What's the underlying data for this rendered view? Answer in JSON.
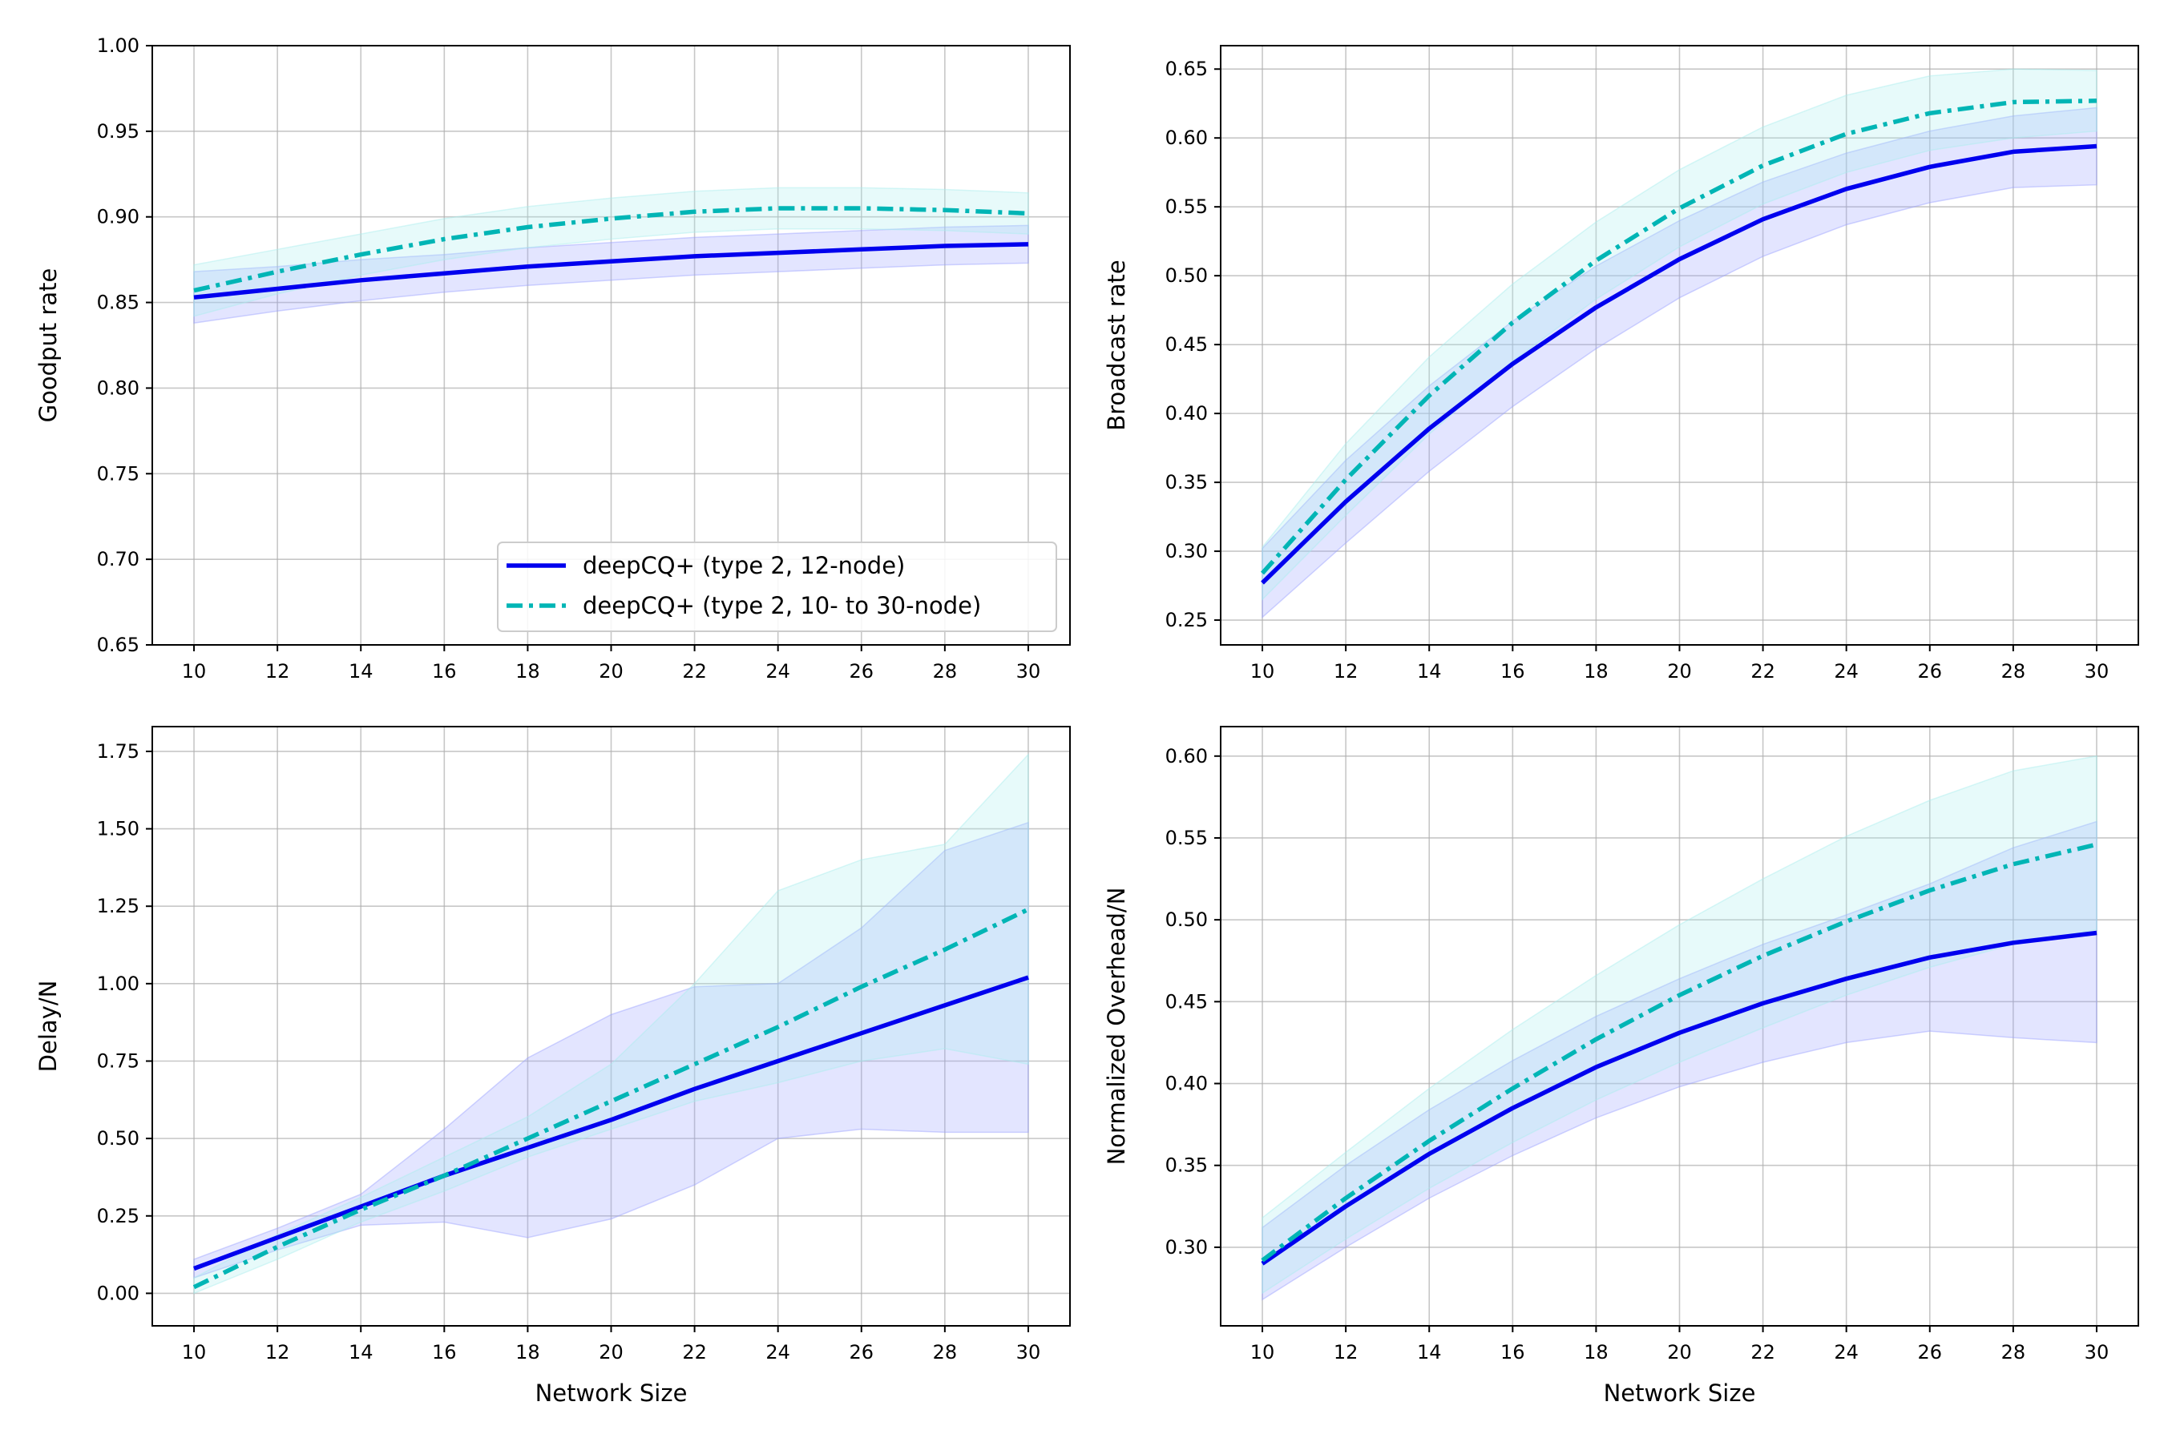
{
  "chart_data": [
    {
      "type": "line",
      "id": "goodput",
      "xlabel": "",
      "ylabel": "Goodput rate",
      "xlim": [
        9,
        31
      ],
      "ylim": [
        0.65,
        1.0
      ],
      "xticks": [
        10,
        12,
        14,
        16,
        18,
        20,
        22,
        24,
        26,
        28,
        30
      ],
      "yticks": [
        0.65,
        0.7,
        0.75,
        0.8,
        0.85,
        0.9,
        0.95,
        1.0
      ],
      "ytick_labels": [
        "0.65",
        "0.70",
        "0.75",
        "0.80",
        "0.85",
        "0.90",
        "0.95",
        "1.00"
      ],
      "grid": true,
      "legend": "lower-right",
      "x": [
        10,
        12,
        14,
        16,
        18,
        20,
        22,
        24,
        26,
        28,
        30
      ],
      "series": [
        {
          "name": "deepCQ+ (type 2, 12-node)",
          "style": "solid",
          "color": "#0000ee",
          "values": [
            0.853,
            0.858,
            0.863,
            0.867,
            0.871,
            0.874,
            0.877,
            0.879,
            0.881,
            0.883,
            0.884
          ],
          "lower": [
            0.838,
            0.845,
            0.851,
            0.856,
            0.86,
            0.863,
            0.866,
            0.868,
            0.87,
            0.872,
            0.873
          ],
          "upper": [
            0.868,
            0.871,
            0.875,
            0.878,
            0.882,
            0.885,
            0.888,
            0.89,
            0.892,
            0.894,
            0.895
          ]
        },
        {
          "name": "deepCQ+ (type 2, 10- to 30-node)",
          "style": "dashdot",
          "color": "#00b5b5",
          "values": [
            0.857,
            0.868,
            0.878,
            0.887,
            0.894,
            0.899,
            0.903,
            0.905,
            0.905,
            0.904,
            0.902
          ],
          "lower": [
            0.842,
            0.855,
            0.866,
            0.875,
            0.882,
            0.887,
            0.891,
            0.893,
            0.893,
            0.892,
            0.89
          ],
          "upper": [
            0.872,
            0.881,
            0.89,
            0.899,
            0.906,
            0.911,
            0.915,
            0.917,
            0.917,
            0.916,
            0.914
          ]
        }
      ]
    },
    {
      "type": "line",
      "id": "broadcast",
      "xlabel": "",
      "ylabel": "Broadcast rate",
      "xlim": [
        9,
        31
      ],
      "ylim": [
        0.232,
        0.667
      ],
      "xticks": [
        10,
        12,
        14,
        16,
        18,
        20,
        22,
        24,
        26,
        28,
        30
      ],
      "yticks": [
        0.25,
        0.3,
        0.35,
        0.4,
        0.45,
        0.5,
        0.55,
        0.6,
        0.65
      ],
      "ytick_labels": [
        "0.25",
        "0.30",
        "0.35",
        "0.40",
        "0.45",
        "0.50",
        "0.55",
        "0.60",
        "0.65"
      ],
      "grid": true,
      "x": [
        10,
        12,
        14,
        16,
        18,
        20,
        22,
        24,
        26,
        28,
        30
      ],
      "series": [
        {
          "name": "deepCQ+ (type 2, 12-node)",
          "style": "solid",
          "color": "#0000ee",
          "values": [
            0.277,
            0.336,
            0.389,
            0.436,
            0.477,
            0.512,
            0.541,
            0.563,
            0.579,
            0.59,
            0.594
          ],
          "lower": [
            0.252,
            0.306,
            0.358,
            0.405,
            0.447,
            0.484,
            0.514,
            0.537,
            0.553,
            0.564,
            0.566
          ],
          "upper": [
            0.302,
            0.366,
            0.42,
            0.467,
            0.507,
            0.54,
            0.568,
            0.589,
            0.605,
            0.616,
            0.622
          ]
        },
        {
          "name": "deepCQ+ (type 2, 10- to 30-node)",
          "style": "dashdot",
          "color": "#00b5b5",
          "values": [
            0.284,
            0.352,
            0.413,
            0.466,
            0.511,
            0.549,
            0.58,
            0.603,
            0.618,
            0.626,
            0.627
          ],
          "lower": [
            0.265,
            0.326,
            0.385,
            0.438,
            0.483,
            0.521,
            0.552,
            0.575,
            0.591,
            0.6,
            0.605
          ],
          "upper": [
            0.303,
            0.378,
            0.441,
            0.494,
            0.539,
            0.577,
            0.608,
            0.631,
            0.645,
            0.65,
            0.649
          ]
        }
      ]
    },
    {
      "type": "line",
      "id": "delay",
      "xlabel": "Network Size",
      "ylabel": "Delay/N",
      "xlim": [
        9,
        31
      ],
      "ylim": [
        -0.105,
        1.83
      ],
      "xticks": [
        10,
        12,
        14,
        16,
        18,
        20,
        22,
        24,
        26,
        28,
        30
      ],
      "yticks": [
        0.0,
        0.25,
        0.5,
        0.75,
        1.0,
        1.25,
        1.5,
        1.75
      ],
      "ytick_labels": [
        "0.00",
        "0.25",
        "0.50",
        "0.75",
        "1.00",
        "1.25",
        "1.50",
        "1.75"
      ],
      "grid": true,
      "x": [
        10,
        12,
        14,
        16,
        18,
        20,
        22,
        24,
        26,
        28,
        30
      ],
      "series": [
        {
          "name": "deepCQ+ (type 2, 12-node)",
          "style": "solid",
          "color": "#0000ee",
          "values": [
            0.08,
            0.18,
            0.28,
            0.38,
            0.47,
            0.56,
            0.66,
            0.75,
            0.84,
            0.93,
            1.02
          ],
          "lower": [
            0.05,
            0.14,
            0.22,
            0.23,
            0.18,
            0.24,
            0.35,
            0.5,
            0.53,
            0.52,
            0.52
          ],
          "upper": [
            0.11,
            0.21,
            0.32,
            0.53,
            0.76,
            0.9,
            0.99,
            1.0,
            1.18,
            1.43,
            1.52
          ]
        },
        {
          "name": "deepCQ+ (type 2, 10- to 30-node)",
          "style": "dashdot",
          "color": "#00b5b5",
          "values": [
            0.02,
            0.15,
            0.27,
            0.38,
            0.5,
            0.62,
            0.74,
            0.86,
            0.99,
            1.11,
            1.24
          ],
          "lower": [
            0.0,
            0.11,
            0.23,
            0.33,
            0.44,
            0.53,
            0.62,
            0.68,
            0.75,
            0.79,
            0.74
          ],
          "upper": [
            0.05,
            0.19,
            0.31,
            0.44,
            0.57,
            0.74,
            1.0,
            1.3,
            1.4,
            1.45,
            1.74
          ]
        }
      ]
    },
    {
      "type": "line",
      "id": "overhead",
      "xlabel": "Network Size",
      "ylabel": "Normalized Overhead/N",
      "xlim": [
        9,
        31
      ],
      "ylim": [
        0.252,
        0.618
      ],
      "xticks": [
        10,
        12,
        14,
        16,
        18,
        20,
        22,
        24,
        26,
        28,
        30
      ],
      "yticks": [
        0.3,
        0.35,
        0.4,
        0.45,
        0.5,
        0.55,
        0.6
      ],
      "ytick_labels": [
        "0.30",
        "0.35",
        "0.40",
        "0.45",
        "0.50",
        "0.55",
        "0.60"
      ],
      "grid": true,
      "x": [
        10,
        12,
        14,
        16,
        18,
        20,
        22,
        24,
        26,
        28,
        30
      ],
      "series": [
        {
          "name": "deepCQ+ (type 2, 12-node)",
          "style": "solid",
          "color": "#0000ee",
          "values": [
            0.29,
            0.325,
            0.357,
            0.385,
            0.41,
            0.431,
            0.449,
            0.464,
            0.477,
            0.486,
            0.492
          ],
          "lower": [
            0.268,
            0.3,
            0.33,
            0.356,
            0.379,
            0.398,
            0.413,
            0.425,
            0.432,
            0.428,
            0.425
          ],
          "upper": [
            0.312,
            0.35,
            0.384,
            0.414,
            0.441,
            0.464,
            0.485,
            0.503,
            0.522,
            0.544,
            0.56
          ]
        },
        {
          "name": "deepCQ+ (type 2, 10- to 30-node)",
          "style": "dashdot",
          "color": "#00b5b5",
          "values": [
            0.292,
            0.33,
            0.365,
            0.397,
            0.427,
            0.454,
            0.478,
            0.499,
            0.518,
            0.534,
            0.546
          ],
          "lower": [
            0.272,
            0.305,
            0.336,
            0.364,
            0.39,
            0.413,
            0.434,
            0.454,
            0.471,
            0.485,
            0.494
          ],
          "upper": [
            0.318,
            0.358,
            0.397,
            0.433,
            0.466,
            0.497,
            0.525,
            0.551,
            0.573,
            0.591,
            0.6
          ]
        }
      ]
    }
  ],
  "legend": {
    "entries": [
      "deepCQ+ (type 2, 12-node)",
      "deepCQ+ (type 2, 10- to 30-node)"
    ]
  },
  "colors": {
    "series_12_node": "#0000ee",
    "series_10_30_node": "#00b5b5",
    "band_12_node": "#9aa0ff",
    "band_10_30_node": "#a8eeee"
  }
}
